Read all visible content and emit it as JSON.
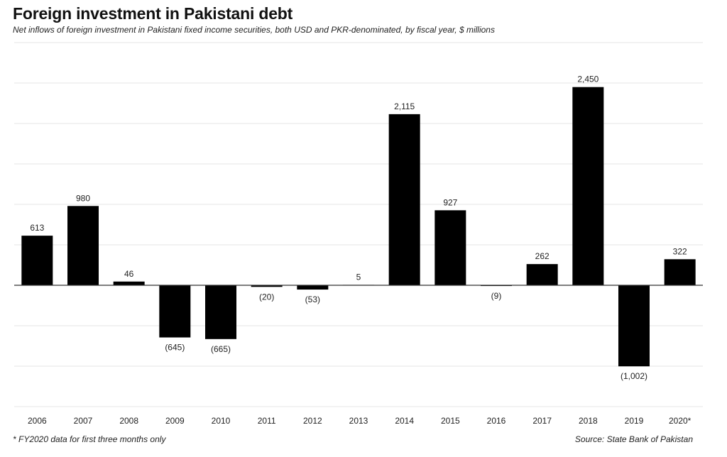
{
  "header": {
    "title": "Foreign investment in Pakistani debt",
    "subtitle": "Net inflows of foreign investment in Pakistani fixed income securities, both USD and PKR-denominated,  by fiscal year, $ millions"
  },
  "footer": {
    "footnote": "* FY2020 data for first three months only",
    "source": "Source:  State Bank of Pakistan"
  },
  "colors": {
    "bar": "#000000",
    "grid": "#e6e6e6",
    "axis": "#333333",
    "text": "#222222"
  },
  "chart_data": {
    "type": "bar",
    "title": "Foreign investment in Pakistani debt",
    "xlabel": "",
    "ylabel": "",
    "ylim": [
      -1500,
      3000
    ],
    "grid": true,
    "categories": [
      "2006",
      "2007",
      "2008",
      "2009",
      "2010",
      "2011",
      "2012",
      "2013",
      "2014",
      "2015",
      "2016",
      "2017",
      "2018",
      "2019",
      "2020*"
    ],
    "values": [
      613,
      980,
      46,
      -645,
      -665,
      -20,
      -53,
      5,
      2115,
      927,
      -9,
      262,
      2450,
      -1002,
      322
    ],
    "data_labels": [
      "613",
      "980",
      "46",
      "(645)",
      "(665)",
      "(20)",
      "(53)",
      "5",
      "2,115",
      "927",
      "(9)",
      "262",
      "2,450",
      "(1,002)",
      "322"
    ]
  }
}
